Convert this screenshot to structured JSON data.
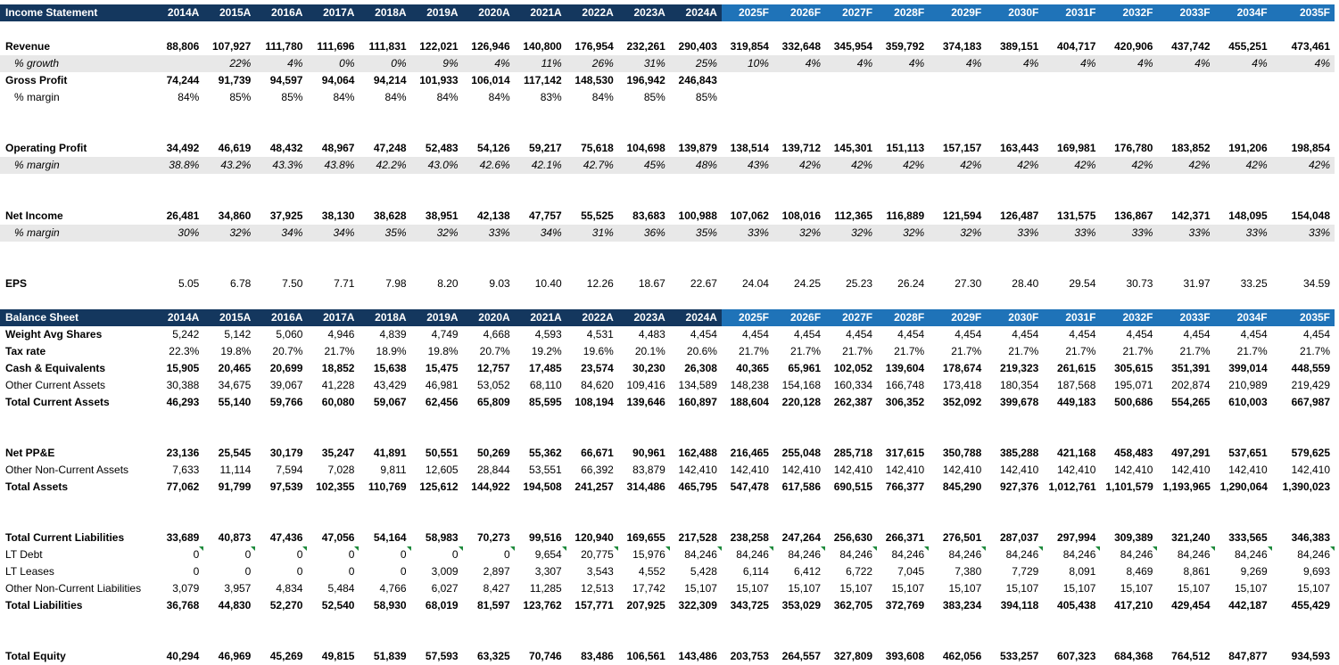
{
  "years": [
    "2014A",
    "2015A",
    "2016A",
    "2017A",
    "2018A",
    "2019A",
    "2020A",
    "2021A",
    "2022A",
    "2023A",
    "2024A",
    "2025F",
    "2026F",
    "2027F",
    "2028F",
    "2029F",
    "2030F",
    "2031F",
    "2032F",
    "2033F",
    "2034F",
    "2035F"
  ],
  "colors": {
    "header_actual": "#14375e",
    "header_forecast": "#1f73b8",
    "shade": "#e8e8e8",
    "note_marker": "#1e8a3c"
  },
  "income": {
    "title": "Income Statement",
    "rows": [
      {
        "type": "blank"
      },
      {
        "label": "Revenue",
        "style": "bold",
        "values": [
          "88,806",
          "107,927",
          "111,780",
          "111,696",
          "111,831",
          "122,021",
          "126,946",
          "140,800",
          "176,954",
          "232,261",
          "290,403",
          "319,854",
          "332,648",
          "345,954",
          "359,792",
          "374,183",
          "389,151",
          "404,717",
          "420,906",
          "437,742",
          "455,251",
          "473,461"
        ]
      },
      {
        "label": "% growth",
        "style": "pct-italic-shaded",
        "values": [
          "",
          "22%",
          "4%",
          "0%",
          "0%",
          "9%",
          "4%",
          "11%",
          "26%",
          "31%",
          "25%",
          "10%",
          "4%",
          "4%",
          "4%",
          "4%",
          "4%",
          "4%",
          "4%",
          "4%",
          "4%",
          "4%"
        ]
      },
      {
        "label": "Gross Profit",
        "style": "bold",
        "values": [
          "74,244",
          "91,739",
          "94,597",
          "94,064",
          "94,214",
          "101,933",
          "106,014",
          "117,142",
          "148,530",
          "196,942",
          "246,843",
          "",
          "",
          "",
          "",
          "",
          "",
          "",
          "",
          "",
          "",
          ""
        ]
      },
      {
        "label": "% margin",
        "style": "pct",
        "values": [
          "84%",
          "85%",
          "85%",
          "84%",
          "84%",
          "84%",
          "84%",
          "83%",
          "84%",
          "85%",
          "85%",
          "",
          "",
          "",
          "",
          "",
          "",
          "",
          "",
          "",
          "",
          ""
        ]
      },
      {
        "type": "blank"
      },
      {
        "type": "blank"
      },
      {
        "label": "Operating Profit",
        "style": "bold",
        "values": [
          "34,492",
          "46,619",
          "48,432",
          "48,967",
          "47,248",
          "52,483",
          "54,126",
          "59,217",
          "75,618",
          "104,698",
          "139,879",
          "138,514",
          "139,712",
          "145,301",
          "151,113",
          "157,157",
          "163,443",
          "169,981",
          "176,780",
          "183,852",
          "191,206",
          "198,854"
        ]
      },
      {
        "label": "% margin",
        "style": "pct-italic-shaded",
        "values": [
          "38.8%",
          "43.2%",
          "43.3%",
          "43.8%",
          "42.2%",
          "43.0%",
          "42.6%",
          "42.1%",
          "42.7%",
          "45%",
          "48%",
          "43%",
          "42%",
          "42%",
          "42%",
          "42%",
          "42%",
          "42%",
          "42%",
          "42%",
          "42%",
          "42%"
        ]
      },
      {
        "type": "blank"
      },
      {
        "type": "blank"
      },
      {
        "label": "Net Income",
        "style": "bold",
        "values": [
          "26,481",
          "34,860",
          "37,925",
          "38,130",
          "38,628",
          "38,951",
          "42,138",
          "47,757",
          "55,525",
          "83,683",
          "100,988",
          "107,062",
          "108,016",
          "112,365",
          "116,889",
          "121,594",
          "126,487",
          "131,575",
          "136,867",
          "142,371",
          "148,095",
          "154,048"
        ]
      },
      {
        "label": "% margin",
        "style": "pct-italic-shaded",
        "values": [
          "30%",
          "32%",
          "34%",
          "34%",
          "35%",
          "32%",
          "33%",
          "34%",
          "31%",
          "36%",
          "35%",
          "33%",
          "32%",
          "32%",
          "32%",
          "32%",
          "33%",
          "33%",
          "33%",
          "33%",
          "33%",
          "33%"
        ]
      },
      {
        "type": "blank"
      },
      {
        "type": "blank"
      },
      {
        "label": "EPS",
        "style": "bold-label",
        "values": [
          "5.05",
          "6.78",
          "7.50",
          "7.71",
          "7.98",
          "8.20",
          "9.03",
          "10.40",
          "12.26",
          "18.67",
          "22.67",
          "24.04",
          "24.25",
          "25.23",
          "26.24",
          "27.30",
          "28.40",
          "29.54",
          "30.73",
          "31.97",
          "33.25",
          "34.59"
        ]
      },
      {
        "type": "blank"
      },
      {
        "type": "blank"
      },
      {
        "label": "Weight Avg Shares",
        "style": "bold-label",
        "values": [
          "5,242",
          "5,142",
          "5,060",
          "4,946",
          "4,839",
          "4,749",
          "4,668",
          "4,593",
          "4,531",
          "4,483",
          "4,454",
          "4,454",
          "4,454",
          "4,454",
          "4,454",
          "4,454",
          "4,454",
          "4,454",
          "4,454",
          "4,454",
          "4,454",
          "4,454"
        ]
      },
      {
        "label": "Tax rate",
        "style": "bold-label",
        "values": [
          "22.3%",
          "19.8%",
          "20.7%",
          "21.7%",
          "18.9%",
          "19.8%",
          "20.7%",
          "19.2%",
          "19.6%",
          "20.1%",
          "20.6%",
          "21.7%",
          "21.7%",
          "21.7%",
          "21.7%",
          "21.7%",
          "21.7%",
          "21.7%",
          "21.7%",
          "21.7%",
          "21.7%",
          "21.7%"
        ]
      }
    ]
  },
  "balance": {
    "title": "Balance Sheet",
    "rows": [
      {
        "type": "blank"
      },
      {
        "type": "blank"
      },
      {
        "label": "Cash & Equivalents",
        "style": "bold",
        "values": [
          "15,905",
          "20,465",
          "20,699",
          "18,852",
          "15,638",
          "15,475",
          "12,757",
          "17,485",
          "23,574",
          "30,230",
          "26,308",
          "40,365",
          "65,961",
          "102,052",
          "139,604",
          "178,674",
          "219,323",
          "261,615",
          "305,615",
          "351,391",
          "399,014",
          "448,559"
        ]
      },
      {
        "label": "Other Current Assets",
        "style": "plain",
        "values": [
          "30,388",
          "34,675",
          "39,067",
          "41,228",
          "43,429",
          "46,981",
          "53,052",
          "68,110",
          "84,620",
          "109,416",
          "134,589",
          "148,238",
          "154,168",
          "160,334",
          "166,748",
          "173,418",
          "180,354",
          "187,568",
          "195,071",
          "202,874",
          "210,989",
          "219,429"
        ]
      },
      {
        "label": "Total Current Assets",
        "style": "bold",
        "values": [
          "46,293",
          "55,140",
          "59,766",
          "60,080",
          "59,067",
          "62,456",
          "65,809",
          "85,595",
          "108,194",
          "139,646",
          "160,897",
          "188,604",
          "220,128",
          "262,387",
          "306,352",
          "352,092",
          "399,678",
          "449,183",
          "500,686",
          "554,265",
          "610,003",
          "667,987"
        ]
      },
      {
        "type": "blank"
      },
      {
        "type": "blank"
      },
      {
        "label": "Net PP&E",
        "style": "bold",
        "values": [
          "23,136",
          "25,545",
          "30,179",
          "35,247",
          "41,891",
          "50,551",
          "50,269",
          "55,362",
          "66,671",
          "90,961",
          "162,488",
          "216,465",
          "255,048",
          "285,718",
          "317,615",
          "350,788",
          "385,288",
          "421,168",
          "458,483",
          "497,291",
          "537,651",
          "579,625"
        ]
      },
      {
        "label": "Other Non-Current Assets",
        "style": "plain",
        "values": [
          "7,633",
          "11,114",
          "7,594",
          "7,028",
          "9,811",
          "12,605",
          "28,844",
          "53,551",
          "66,392",
          "83,879",
          "142,410",
          "142,410",
          "142,410",
          "142,410",
          "142,410",
          "142,410",
          "142,410",
          "142,410",
          "142,410",
          "142,410",
          "142,410",
          "142,410"
        ]
      },
      {
        "label": "Total Assets",
        "style": "bold",
        "values": [
          "77,062",
          "91,799",
          "97,539",
          "102,355",
          "110,769",
          "125,612",
          "144,922",
          "194,508",
          "241,257",
          "314,486",
          "465,795",
          "547,478",
          "617,586",
          "690,515",
          "766,377",
          "845,290",
          "927,376",
          "1,012,761",
          "1,101,579",
          "1,193,965",
          "1,290,064",
          "1,390,023"
        ]
      },
      {
        "type": "blank"
      },
      {
        "type": "blank"
      },
      {
        "label": "Total Current Liabilities",
        "style": "bold",
        "values": [
          "33,689",
          "40,873",
          "47,436",
          "47,056",
          "54,164",
          "58,983",
          "70,273",
          "99,516",
          "120,940",
          "169,655",
          "217,528",
          "238,258",
          "247,264",
          "256,630",
          "266,371",
          "276,501",
          "287,037",
          "297,994",
          "309,389",
          "321,240",
          "333,565",
          "346,383"
        ]
      },
      {
        "label": "LT Debt",
        "style": "plain",
        "marker": true,
        "values": [
          "0",
          "0",
          "0",
          "0",
          "0",
          "0",
          "0",
          "9,654",
          "20,775",
          "15,976",
          "84,246",
          "84,246",
          "84,246",
          "84,246",
          "84,246",
          "84,246",
          "84,246",
          "84,246",
          "84,246",
          "84,246",
          "84,246",
          "84,246"
        ]
      },
      {
        "label": "LT Leases",
        "style": "plain",
        "values": [
          "0",
          "0",
          "0",
          "0",
          "0",
          "3,009",
          "2,897",
          "3,307",
          "3,543",
          "4,552",
          "5,428",
          "6,114",
          "6,412",
          "6,722",
          "7,045",
          "7,380",
          "7,729",
          "8,091",
          "8,469",
          "8,861",
          "9,269",
          "9,693"
        ]
      },
      {
        "label": "Other Non-Current Liabilities",
        "style": "plain",
        "values": [
          "3,079",
          "3,957",
          "4,834",
          "5,484",
          "4,766",
          "6,027",
          "8,427",
          "11,285",
          "12,513",
          "17,742",
          "15,107",
          "15,107",
          "15,107",
          "15,107",
          "15,107",
          "15,107",
          "15,107",
          "15,107",
          "15,107",
          "15,107",
          "15,107",
          "15,107"
        ]
      },
      {
        "label": "Total Liabilities",
        "style": "bold",
        "values": [
          "36,768",
          "44,830",
          "52,270",
          "52,540",
          "58,930",
          "68,019",
          "81,597",
          "123,762",
          "157,771",
          "207,925",
          "322,309",
          "343,725",
          "353,029",
          "362,705",
          "372,769",
          "383,234",
          "394,118",
          "405,438",
          "417,210",
          "429,454",
          "442,187",
          "455,429"
        ]
      },
      {
        "type": "blank"
      },
      {
        "type": "blank"
      },
      {
        "label": "Total Equity",
        "style": "bold",
        "values": [
          "40,294",
          "46,969",
          "45,269",
          "49,815",
          "51,839",
          "57,593",
          "63,325",
          "70,746",
          "83,486",
          "106,561",
          "143,486",
          "203,753",
          "264,557",
          "327,809",
          "393,608",
          "462,056",
          "533,257",
          "607,323",
          "684,368",
          "764,512",
          "847,877",
          "934,593"
        ]
      }
    ]
  }
}
